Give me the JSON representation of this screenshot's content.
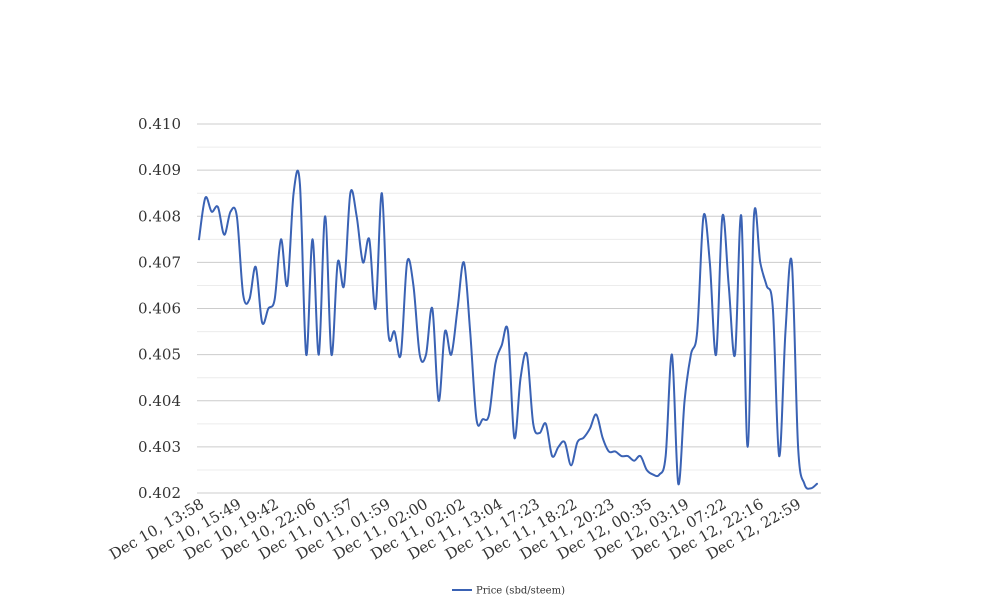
{
  "chart_data": {
    "type": "line",
    "title": "",
    "xlabel": "",
    "ylabel": "",
    "ylim": [
      0.402,
      0.41
    ],
    "yticks": [
      "0.402",
      "0.403",
      "0.404",
      "0.405",
      "0.406",
      "0.407",
      "0.408",
      "0.409",
      "0.410"
    ],
    "xticks": [
      "Dec 10, 13:58",
      "Dec 10, 15:49",
      "Dec 10, 19:42",
      "Dec 10, 22:06",
      "Dec 11, 01:57",
      "Dec 11, 01:59",
      "Dec 11, 02:00",
      "Dec 11, 02:02",
      "Dec 11, 13:04",
      "Dec 11, 17:23",
      "Dec 11, 18:22",
      "Dec 11, 20:23",
      "Dec 12, 00:35",
      "Dec 12, 03:19",
      "Dec 12, 07:22",
      "Dec 12, 22:16",
      "Dec 12, 22:59"
    ],
    "grid": true,
    "legend_position": "bottom",
    "color": "#3a62b4",
    "series": [
      {
        "name": "Price (sbd/steem)",
        "values": [
          0.4075,
          0.4084,
          0.4081,
          0.4082,
          0.4076,
          0.4081,
          0.408,
          0.4063,
          0.4062,
          0.4069,
          0.4057,
          0.406,
          0.4062,
          0.4075,
          0.4065,
          0.4085,
          0.4087,
          0.405,
          0.4075,
          0.405,
          0.408,
          0.405,
          0.407,
          0.4065,
          0.4085,
          0.408,
          0.407,
          0.4075,
          0.406,
          0.4085,
          0.4055,
          0.4055,
          0.405,
          0.407,
          0.4065,
          0.405,
          0.405,
          0.406,
          0.404,
          0.4055,
          0.405,
          0.406,
          0.407,
          0.4055,
          0.4036,
          0.4036,
          0.4037,
          0.4048,
          0.4052,
          0.4055,
          0.4032,
          0.4045,
          0.405,
          0.4035,
          0.4033,
          0.4035,
          0.4028,
          0.403,
          0.4031,
          0.4026,
          0.4031,
          0.4032,
          0.4034,
          0.4037,
          0.4032,
          0.4029,
          0.4029,
          0.4028,
          0.4028,
          0.4027,
          0.4028,
          0.4025,
          0.4024,
          0.4024,
          0.4028,
          0.405,
          0.4022,
          0.404,
          0.405,
          0.4055,
          0.408,
          0.407,
          0.405,
          0.408,
          0.4065,
          0.405,
          0.408,
          0.403,
          0.408,
          0.407,
          0.4065,
          0.406,
          0.4028,
          0.4055,
          0.407,
          0.403,
          0.4022,
          0.4021,
          0.4022
        ]
      }
    ]
  }
}
